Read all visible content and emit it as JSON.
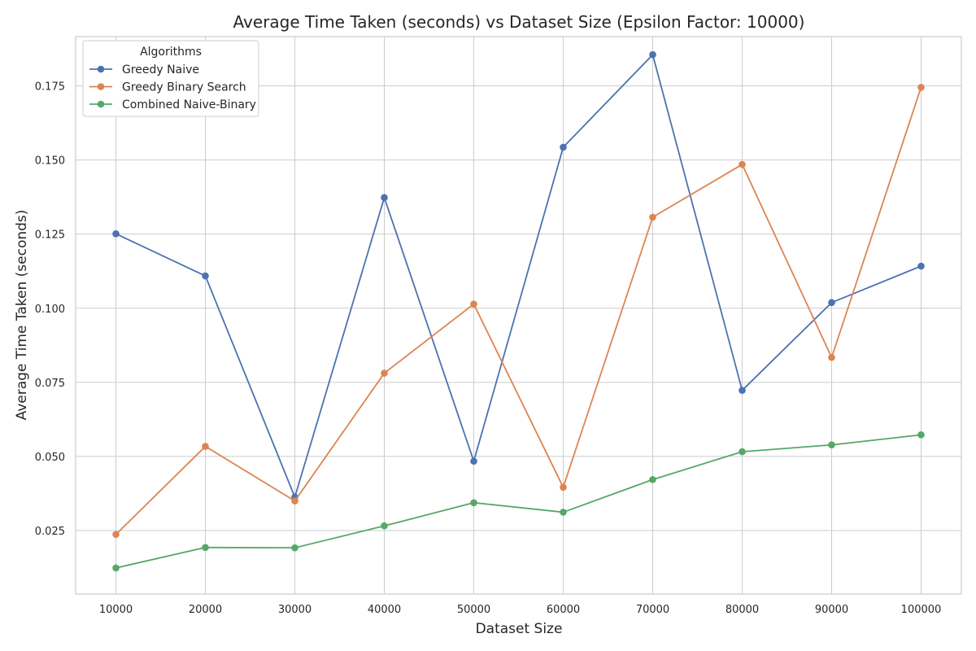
{
  "chart_data": {
    "type": "line",
    "title": "Average Time Taken (seconds) vs Dataset Size (Epsilon Factor: 10000)",
    "xlabel": "Dataset Size",
    "ylabel": "Average Time Taken (seconds)",
    "x": [
      10000,
      20000,
      30000,
      40000,
      50000,
      60000,
      70000,
      80000,
      90000,
      100000
    ],
    "x_tick_labels": [
      "10000",
      "20000",
      "30000",
      "40000",
      "50000",
      "60000",
      "70000",
      "80000",
      "90000",
      "100000"
    ],
    "y_ticks": [
      0.025,
      0.05,
      0.075,
      0.1,
      0.125,
      0.15,
      0.175
    ],
    "y_tick_labels": [
      "0.025",
      "0.050",
      "0.075",
      "0.100",
      "0.125",
      "0.150",
      "0.175"
    ],
    "xlim": [
      5500,
      104500
    ],
    "ylim": [
      0.0036,
      0.1916
    ],
    "grid": true,
    "legend": {
      "title": "Algorithms",
      "placement": "top-left"
    },
    "series": [
      {
        "name": "Greedy Naive",
        "color": "#4c72b0",
        "values": [
          0.1251,
          0.1109,
          0.0363,
          0.1373,
          0.0484,
          0.1543,
          0.1855,
          0.0723,
          0.1019,
          0.1142
        ]
      },
      {
        "name": "Greedy Binary Search",
        "color": "#dd8452",
        "values": [
          0.0237,
          0.0534,
          0.035,
          0.0781,
          0.1014,
          0.0396,
          0.1307,
          0.1485,
          0.0834,
          0.1745
        ]
      },
      {
        "name": "Combined Naive-Binary",
        "color": "#55a868",
        "values": [
          0.0124,
          0.0193,
          0.0192,
          0.0266,
          0.0344,
          0.0312,
          0.0422,
          0.0516,
          0.0539,
          0.0573
        ]
      }
    ]
  }
}
